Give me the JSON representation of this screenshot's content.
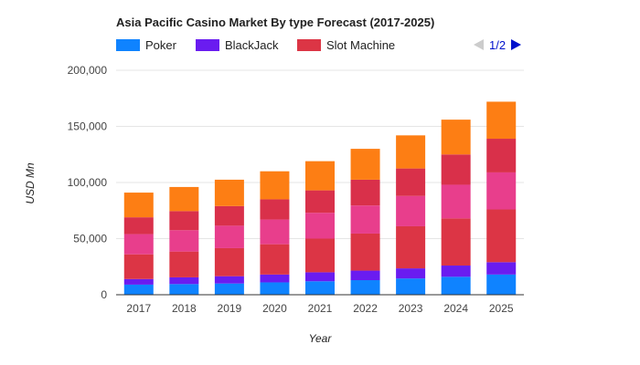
{
  "chart_data": {
    "type": "bar",
    "stacked": true,
    "title": "Asia Pacific Casino Market By type Forecast (2017-2025)",
    "xlabel": "Year",
    "ylabel": "USD Mn",
    "ylim": [
      0,
      200000
    ],
    "yticks": [
      0,
      50000,
      100000,
      150000,
      200000
    ],
    "ytick_labels": [
      "0",
      "50,000",
      "100,000",
      "150,000",
      "200,000"
    ],
    "grid": true,
    "legend_position": "top",
    "categories": [
      "2017",
      "2018",
      "2019",
      "2020",
      "2021",
      "2022",
      "2023",
      "2024",
      "2025"
    ],
    "series": [
      {
        "name": "Poker",
        "color": "#0f83ff",
        "values": [
          9000,
          9500,
          10000,
          11000,
          12000,
          13000,
          14500,
          16000,
          18000
        ]
      },
      {
        "name": "BlackJack",
        "color": "#6a1cf0",
        "values": [
          5000,
          6000,
          6500,
          7000,
          8000,
          8500,
          9000,
          10000,
          11000
        ]
      },
      {
        "name": "Slot Machine",
        "color": "#dc3545",
        "values": [
          22000,
          23000,
          25000,
          27000,
          30000,
          33000,
          37500,
          42000,
          47000
        ]
      },
      {
        "color": "#e83e8c",
        "values": [
          18000,
          19000,
          20000,
          22000,
          23000,
          25000,
          27000,
          30000,
          33000
        ]
      },
      {
        "color": "#d9304a",
        "values": [
          15000,
          17000,
          17500,
          18000,
          20000,
          23000,
          24500,
          27000,
          30000
        ]
      },
      {
        "color": "#fd7e14",
        "values": [
          22000,
          21500,
          23500,
          25000,
          26000,
          27500,
          29500,
          31000,
          33000
        ]
      }
    ]
  },
  "pager": {
    "label": "1/2"
  }
}
